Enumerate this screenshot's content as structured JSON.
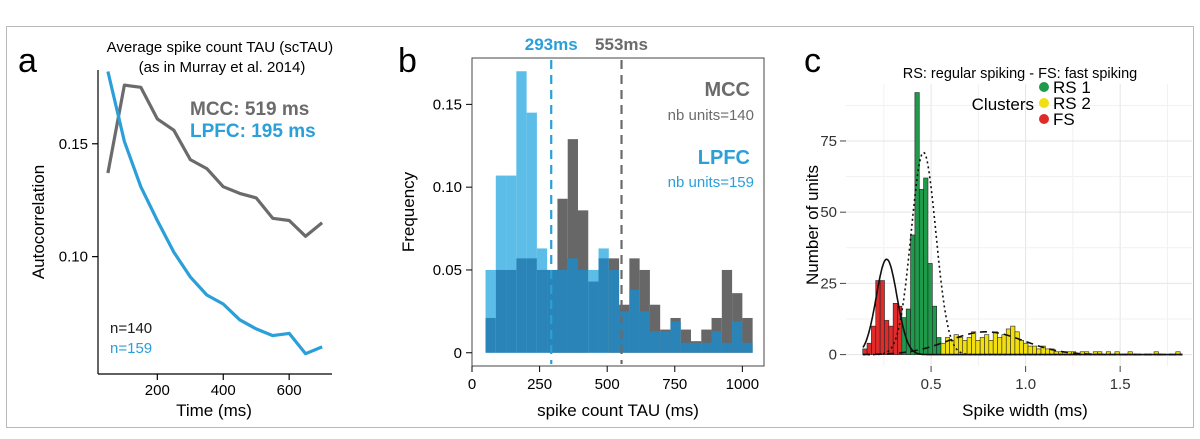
{
  "chart_data": [
    {
      "panel_label": "a",
      "type": "line",
      "title": "Average spike count TAU (scTAU)\n(as in Murray et al. 2014)",
      "xlabel": "Time (ms)",
      "ylabel": "Autocorrelation",
      "xlim": [
        20,
        730
      ],
      "ylim": [
        0.048,
        0.188
      ],
      "x_ticks": [
        200,
        400,
        600
      ],
      "y_ticks": [
        0.1,
        0.15
      ],
      "y_tick_labels": [
        "0.10",
        "0.15"
      ],
      "grid": false,
      "series": [
        {
          "name": "MCC: 519 ms",
          "color": "#6b6b6b",
          "x": [
            50,
            100,
            150,
            200,
            250,
            300,
            350,
            400,
            450,
            500,
            550,
            600,
            650,
            700
          ],
          "y": [
            0.137,
            0.176,
            0.175,
            0.161,
            0.156,
            0.143,
            0.139,
            0.131,
            0.128,
            0.126,
            0.117,
            0.116,
            0.109,
            0.115
          ]
        },
        {
          "name": "LPFC: 195 ms",
          "color": "#2a9fd8",
          "x": [
            50,
            100,
            150,
            200,
            250,
            300,
            350,
            400,
            450,
            500,
            550,
            600,
            650,
            700
          ],
          "y": [
            0.182,
            0.151,
            0.131,
            0.116,
            0.102,
            0.091,
            0.083,
            0.079,
            0.072,
            0.068,
            0.065,
            0.066,
            0.057,
            0.06
          ]
        }
      ],
      "annotations": [
        {
          "text": "n=140",
          "color": "#1a1a1a"
        },
        {
          "text": "n=159",
          "color": "#2a9fd8"
        }
      ]
    },
    {
      "panel_label": "b",
      "type": "bar",
      "title": "",
      "xlabel": "spike count TAU (ms)",
      "ylabel": "Frequency",
      "xlim": [
        0,
        1080
      ],
      "ylim": [
        -0.008,
        0.178
      ],
      "x_ticks": [
        0,
        250,
        500,
        750,
        1000
      ],
      "y_ticks": [
        0,
        0.05,
        0.1,
        0.15
      ],
      "y_tick_labels": [
        "0",
        "0.05",
        "0.10",
        "0.15"
      ],
      "bin_width": 38,
      "bin_centers": [
        69,
        107,
        145,
        183,
        221,
        259,
        297,
        335,
        373,
        411,
        449,
        487,
        525,
        563,
        601,
        639,
        677,
        715,
        753,
        791,
        829,
        867,
        905,
        943,
        981,
        1019
      ],
      "series": [
        {
          "name": "MCC",
          "color": "#676767",
          "values": [
            0.021,
            0.05,
            0.05,
            0.057,
            0.057,
            0.05,
            0.05,
            0.093,
            0.129,
            0.086,
            0.043,
            0.057,
            0.057,
            0.029,
            0.057,
            0.05,
            0.029,
            0.014,
            0.021,
            0.014,
            0.007,
            0.014,
            0.021,
            0.05,
            0.036,
            0.021
          ]
        },
        {
          "name": "LPFC",
          "color": "#5bbde8",
          "values": [
            0.05,
            0.107,
            0.107,
            0.17,
            0.145,
            0.063,
            0.05,
            0.05,
            0.057,
            0.05,
            0.05,
            0.063,
            0.05,
            0.025,
            0.038,
            0.025,
            0.013,
            0.013,
            0.019,
            0.006,
            0.006,
            0.006,
            0.013,
            0.006,
            0.019,
            0.006
          ]
        }
      ],
      "overlap_color": "#2a84b8",
      "reference_lines": [
        {
          "x": 293,
          "label": "293ms",
          "color": "#2a9fd8"
        },
        {
          "x": 553,
          "label": "553ms",
          "color": "#6b6b6b"
        }
      ],
      "legend": [
        {
          "title": "MCC",
          "subtitle": "nb units=140",
          "color": "#6b6b6b"
        },
        {
          "title": "LPFC",
          "subtitle": "nb units=159",
          "color": "#2a9fd8"
        }
      ]
    },
    {
      "panel_label": "c",
      "type": "bar",
      "title": "RS: regular spiking - FS: fast spiking",
      "xlabel": "Spike width (ms)",
      "ylabel": "Number of units",
      "xlim": [
        0.05,
        1.88
      ],
      "ylim": [
        -4,
        95
      ],
      "x_ticks": [
        0.5,
        1.0,
        1.5
      ],
      "x_tick_labels": [
        "0.5",
        "1.0",
        "1.5"
      ],
      "y_ticks": [
        0,
        25,
        50,
        75
      ],
      "grid": true,
      "bin_width": 0.0232,
      "clusters": [
        {
          "name": "FS",
          "color": "#e02b2b",
          "x": [
            0.15,
            0.173,
            0.196,
            0.219,
            0.242,
            0.265,
            0.288,
            0.311,
            0.334
          ],
          "y": [
            2,
            4,
            10,
            26,
            26,
            12,
            10,
            18,
            17
          ]
        },
        {
          "name": "RS 1",
          "color": "#1f9a4a",
          "x": [
            0.357,
            0.38,
            0.403,
            0.426,
            0.449,
            0.472,
            0.495,
            0.518,
            0.541
          ],
          "y": [
            13,
            16,
            42,
            92,
            58,
            62,
            32,
            17,
            6
          ]
        },
        {
          "name": "RS 2",
          "color": "#f2df10",
          "x": [
            0.564,
            0.587,
            0.61,
            0.633,
            0.656,
            0.679,
            0.702,
            0.725,
            0.748,
            0.771,
            0.794,
            0.817,
            0.84,
            0.863,
            0.886,
            0.909,
            0.932,
            0.955,
            0.978,
            1.001,
            1.024,
            1.047,
            1.07,
            1.093,
            1.116,
            1.139,
            1.162,
            1.185,
            1.208,
            1.231,
            1.254,
            1.277,
            1.3,
            1.323,
            1.346,
            1.369,
            1.392,
            1.415,
            1.438,
            1.461,
            1.484,
            1.507,
            1.53,
            1.553,
            1.576,
            1.599,
            1.622,
            1.645,
            1.668,
            1.691,
            1.714,
            1.737,
            1.76,
            1.783,
            1.806
          ],
          "y": [
            4,
            6,
            5,
            7,
            6,
            5,
            6,
            8,
            5,
            6,
            7,
            5,
            8,
            6,
            7,
            9,
            10,
            8,
            5,
            4,
            3,
            3,
            2,
            3,
            2,
            2,
            1,
            1,
            1,
            1,
            1,
            0,
            1,
            1,
            0,
            1,
            1,
            0,
            1,
            0,
            1,
            0,
            0,
            1,
            0,
            0,
            0,
            0,
            0,
            1,
            0,
            0,
            0,
            0,
            1
          ]
        }
      ],
      "fits": [
        {
          "cluster": "FS",
          "style": "solid",
          "mean": 0.265,
          "sd": 0.055,
          "peak": 33.5
        },
        {
          "cluster": "RS 1",
          "style": "dotted",
          "mean": 0.46,
          "sd": 0.065,
          "peak": 71
        },
        {
          "cluster": "RS 2",
          "style": "dashed",
          "mean": 0.79,
          "sd": 0.2,
          "peak": 8
        }
      ],
      "legend_title": "Clusters",
      "legend_position": "top-right",
      "legend": [
        {
          "name": "RS 1",
          "color": "#1f9a4a"
        },
        {
          "name": "RS 2",
          "color": "#f2df10"
        },
        {
          "name": "FS",
          "color": "#e02b2b"
        }
      ]
    }
  ]
}
